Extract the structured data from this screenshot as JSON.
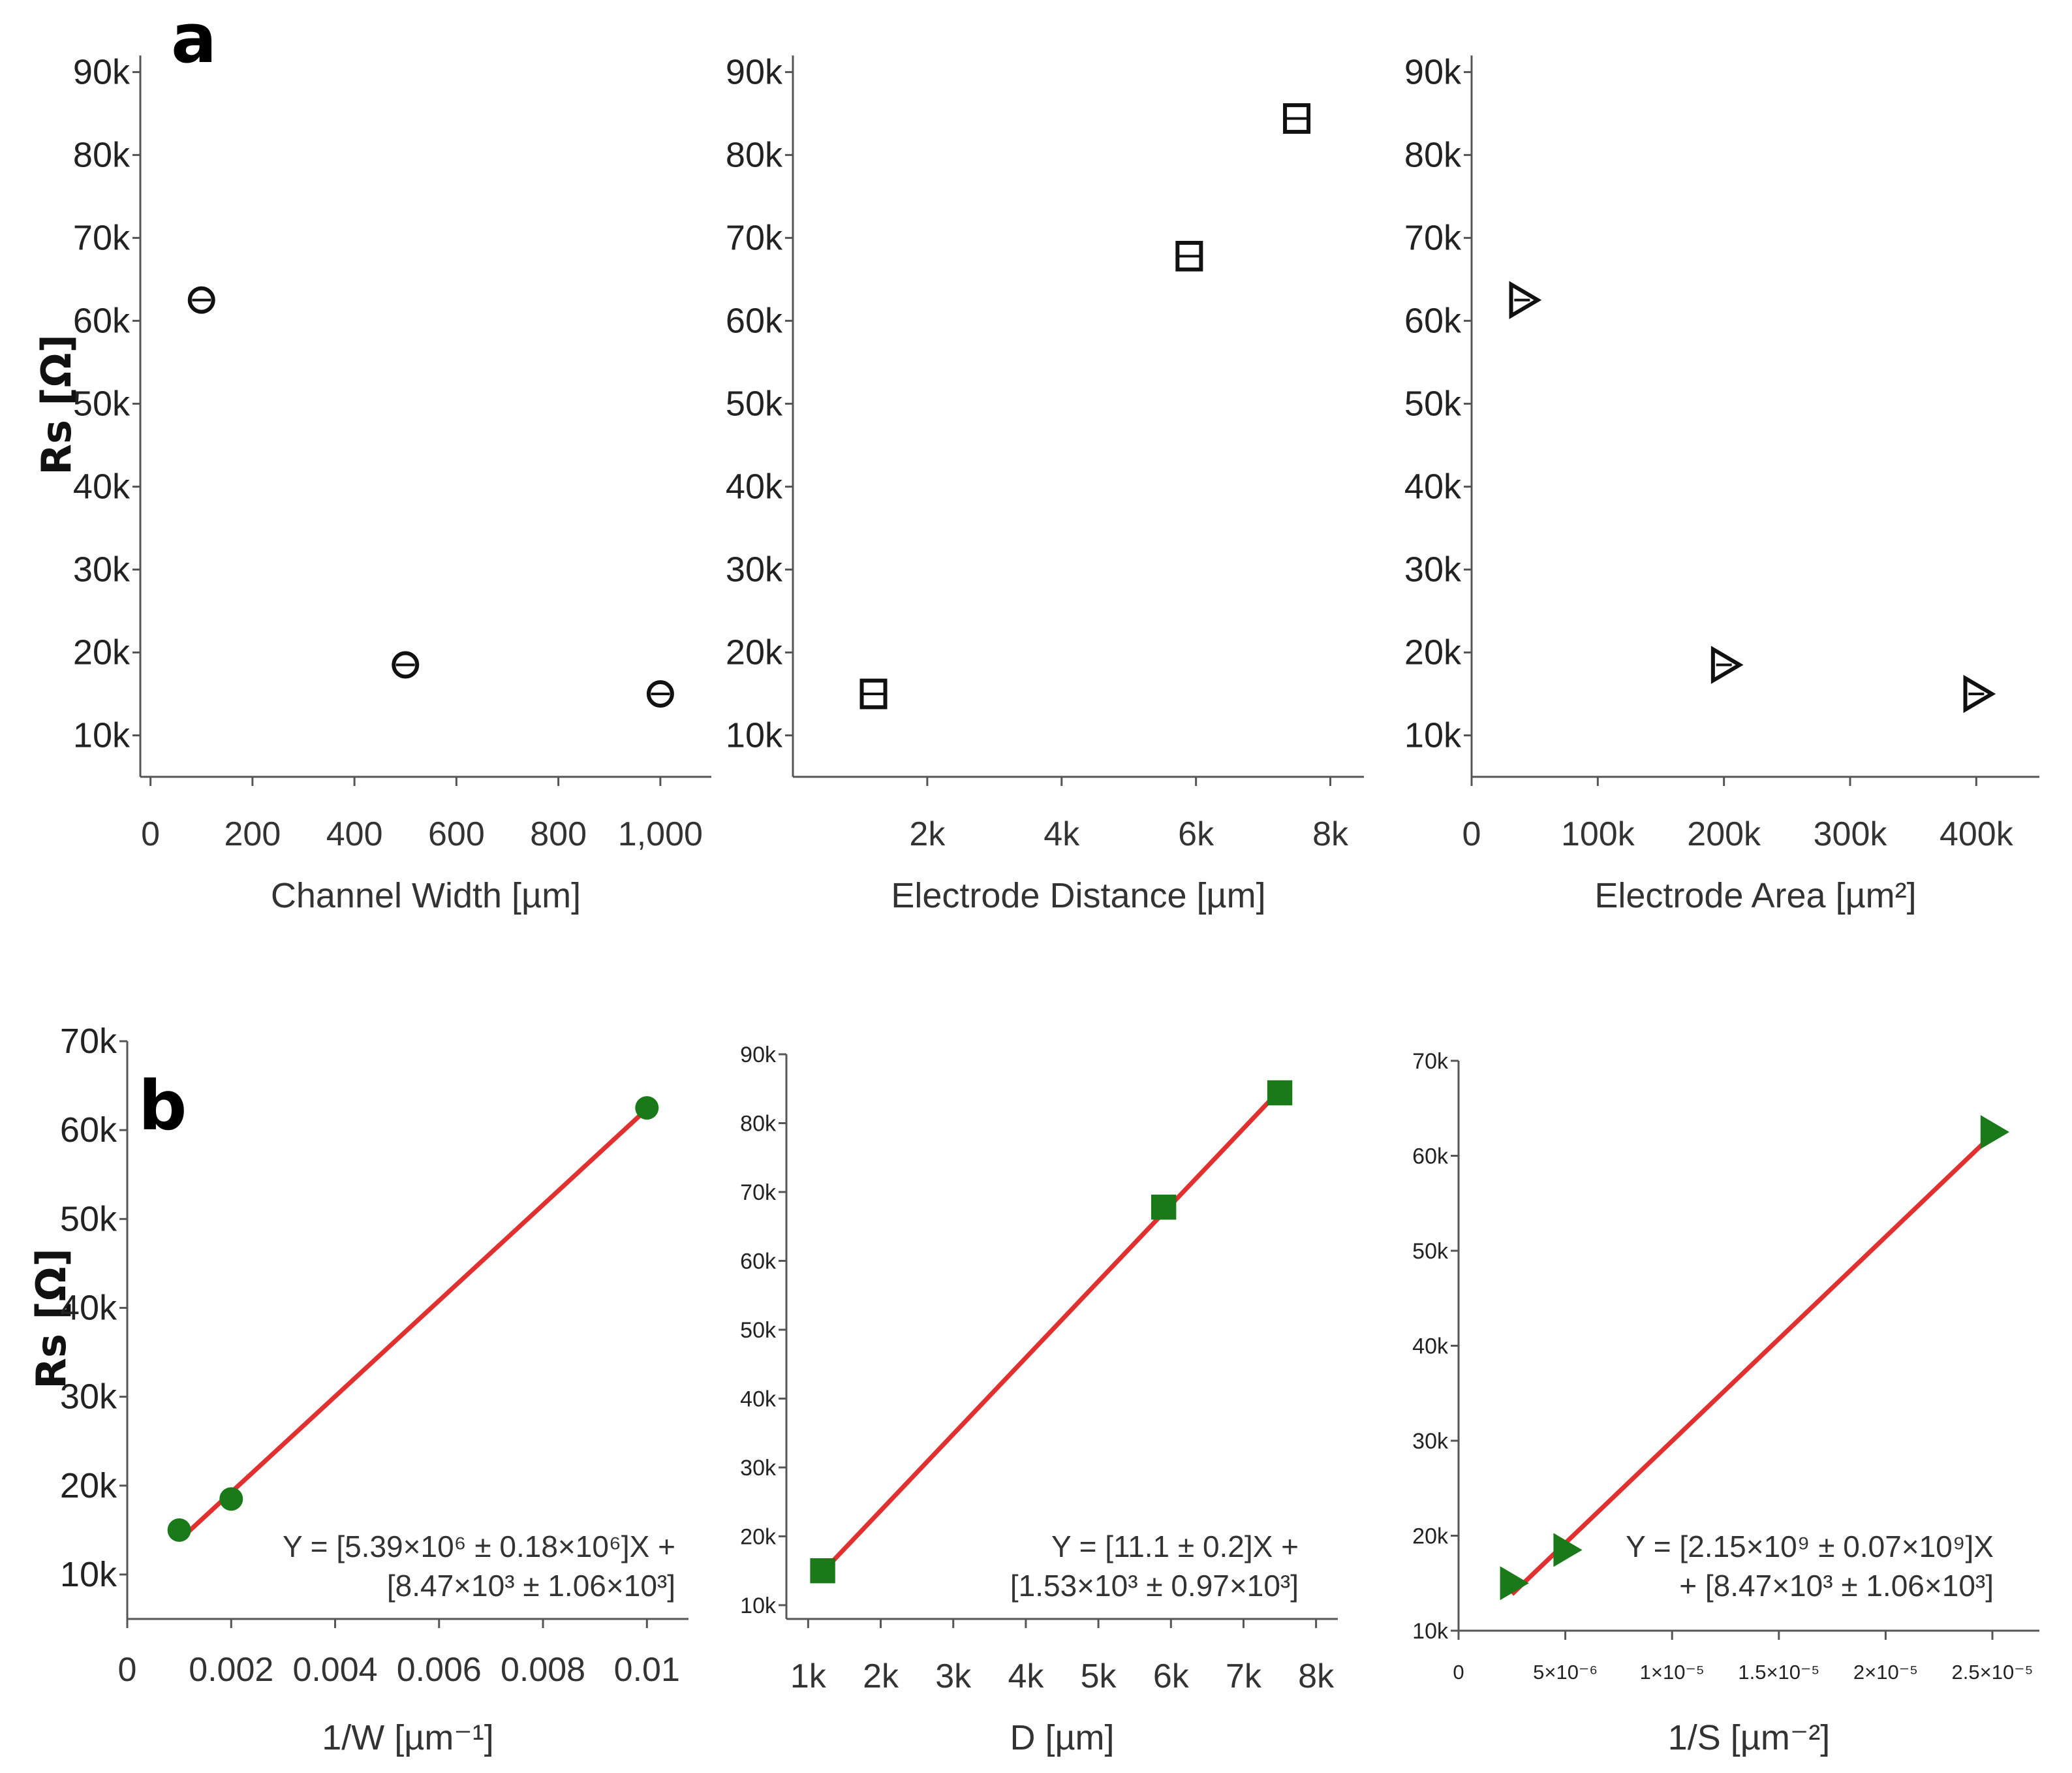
{
  "panels": {
    "a": {
      "label": "a",
      "ylabel": "Rs [Ω]"
    },
    "b": {
      "label": "b",
      "ylabel": "Rs [Ω]"
    }
  },
  "colors": {
    "marker_a": "#111111",
    "marker_b": "#1a7a1a",
    "fit_line": "#e03030",
    "axis": "#555555"
  },
  "chart_data": [
    {
      "id": "a1",
      "panel": "a",
      "type": "scatter",
      "xlabel": "Channel Width [µm]",
      "ylabel": "Rs [Ω]",
      "xlim": [
        -20,
        1100
      ],
      "ylim": [
        5000,
        92000
      ],
      "xticks": [
        0,
        200,
        400,
        600,
        800,
        1000
      ],
      "xtick_labels": [
        "0",
        "200",
        "400",
        "600",
        "800",
        "1,000"
      ],
      "yticks": [
        10000,
        20000,
        30000,
        40000,
        50000,
        60000,
        70000,
        80000,
        90000
      ],
      "ytick_labels": [
        "10k",
        "20k",
        "30k",
        "40k",
        "50k",
        "60k",
        "70k",
        "80k",
        "90k"
      ],
      "marker": "circle",
      "x": [
        100,
        500,
        1000
      ],
      "y": [
        62500,
        18500,
        15000
      ]
    },
    {
      "id": "a2",
      "panel": "a",
      "type": "scatter",
      "xlabel": "Electrode Distance [µm]",
      "ylabel": "Rs [Ω]",
      "xlim": [
        0,
        8500
      ],
      "ylim": [
        5000,
        92000
      ],
      "xticks": [
        2000,
        4000,
        6000,
        8000
      ],
      "xtick_labels": [
        "2k",
        "4k",
        "6k",
        "8k"
      ],
      "yticks": [
        10000,
        20000,
        30000,
        40000,
        50000,
        60000,
        70000,
        80000,
        90000
      ],
      "ytick_labels": [
        "10k",
        "20k",
        "30k",
        "40k",
        "50k",
        "60k",
        "70k",
        "80k",
        "90k"
      ],
      "marker": "square",
      "x": [
        1200,
        5900,
        7500
      ],
      "y": [
        15000,
        67800,
        84400
      ]
    },
    {
      "id": "a3",
      "panel": "a",
      "type": "scatter",
      "xlabel": "Electrode Area [µm²]",
      "ylabel": "Rs [Ω]",
      "xlim": [
        0,
        450000
      ],
      "ylim": [
        5000,
        92000
      ],
      "xticks": [
        0,
        100000,
        200000,
        300000,
        400000
      ],
      "xtick_labels": [
        "0",
        "100k",
        "200k",
        "300k",
        "400k"
      ],
      "yticks": [
        10000,
        20000,
        30000,
        40000,
        50000,
        60000,
        70000,
        80000,
        90000
      ],
      "ytick_labels": [
        "10k",
        "20k",
        "30k",
        "40k",
        "50k",
        "60k",
        "70k",
        "80k",
        "90k"
      ],
      "marker": "triangle-right",
      "x": [
        40000,
        200000,
        400000
      ],
      "y": [
        62500,
        18500,
        15000
      ]
    },
    {
      "id": "b1",
      "panel": "b",
      "type": "scatter",
      "xlabel": "1/W [µm⁻¹]",
      "ylabel": "Rs [Ω]",
      "xlim": [
        0,
        0.0108
      ],
      "ylim": [
        5000,
        70000
      ],
      "xticks": [
        0,
        0.002,
        0.004,
        0.006,
        0.008,
        0.01
      ],
      "xtick_labels": [
        "0",
        "0.002",
        "0.004",
        "0.006",
        "0.008",
        "0.01"
      ],
      "yticks": [
        10000,
        20000,
        30000,
        40000,
        50000,
        60000,
        70000
      ],
      "ytick_labels": [
        "10k",
        "20k",
        "30k",
        "40k",
        "50k",
        "60k",
        "70k"
      ],
      "marker": "circle",
      "x": [
        0.001,
        0.002,
        0.01
      ],
      "y": [
        15000,
        18500,
        62500
      ],
      "fit": {
        "slope": 5390000,
        "intercept": 8470,
        "x_range": [
          0.001,
          0.01
        ]
      },
      "equation": [
        "Y = [5.39×10⁶ ± 0.18×10⁶]X +",
        "[8.47×10³ ± 1.06×10³]"
      ]
    },
    {
      "id": "b2",
      "panel": "b",
      "type": "scatter",
      "xlabel": "D [µm]",
      "ylabel": "Rs [Ω]",
      "xlim": [
        700,
        8300
      ],
      "ylim": [
        8000,
        90000
      ],
      "xticks": [
        1000,
        2000,
        3000,
        4000,
        5000,
        6000,
        7000,
        8000
      ],
      "xtick_labels": [
        "1k",
        "2k",
        "3k",
        "4k",
        "5k",
        "6k",
        "7k",
        "8k"
      ],
      "yticks": [
        10000,
        20000,
        30000,
        40000,
        50000,
        60000,
        70000,
        80000,
        90000
      ],
      "ytick_labels": [
        "10k",
        "20k",
        "30k",
        "40k",
        "50k",
        "60k",
        "70k",
        "80k",
        "90k"
      ],
      "marker": "square",
      "x": [
        1200,
        5900,
        7500
      ],
      "y": [
        15000,
        67800,
        84400
      ],
      "fit": {
        "slope": 11.1,
        "intercept": 1530,
        "x_range": [
          1200,
          7500
        ]
      },
      "equation": [
        "Y = [11.1 ± 0.2]X +",
        "[1.53×10³ ± 0.97×10³]"
      ]
    },
    {
      "id": "b3",
      "panel": "b",
      "type": "scatter",
      "xlabel": "1/S [µm⁻²]",
      "ylabel": "Rs [Ω]",
      "xlim": [
        0,
        2.72e-05
      ],
      "ylim": [
        10000,
        70000
      ],
      "xticks": [
        0,
        5e-06,
        1e-05,
        1.5e-05,
        2e-05,
        2.5e-05
      ],
      "xtick_labels": [
        "0",
        "5×10⁻⁶",
        "1×10⁻⁵",
        "1.5×10⁻⁵",
        "2×10⁻⁵",
        "2.5×10⁻⁵"
      ],
      "yticks": [
        10000,
        20000,
        30000,
        40000,
        50000,
        60000,
        70000
      ],
      "ytick_labels": [
        "10k",
        "20k",
        "30k",
        "40k",
        "50k",
        "60k",
        "70k"
      ],
      "marker": "triangle-right",
      "x": [
        2.5e-06,
        5e-06,
        2.5e-05
      ],
      "y": [
        15000,
        18500,
        62500
      ],
      "fit": {
        "slope": 2150000000,
        "intercept": 8470,
        "x_range": [
          2.5e-06,
          2.5e-05
        ]
      },
      "equation": [
        "Y = [2.15×10⁹ ± 0.07×10⁹]X",
        "+ [8.47×10³ ± 1.06×10³]"
      ]
    }
  ]
}
